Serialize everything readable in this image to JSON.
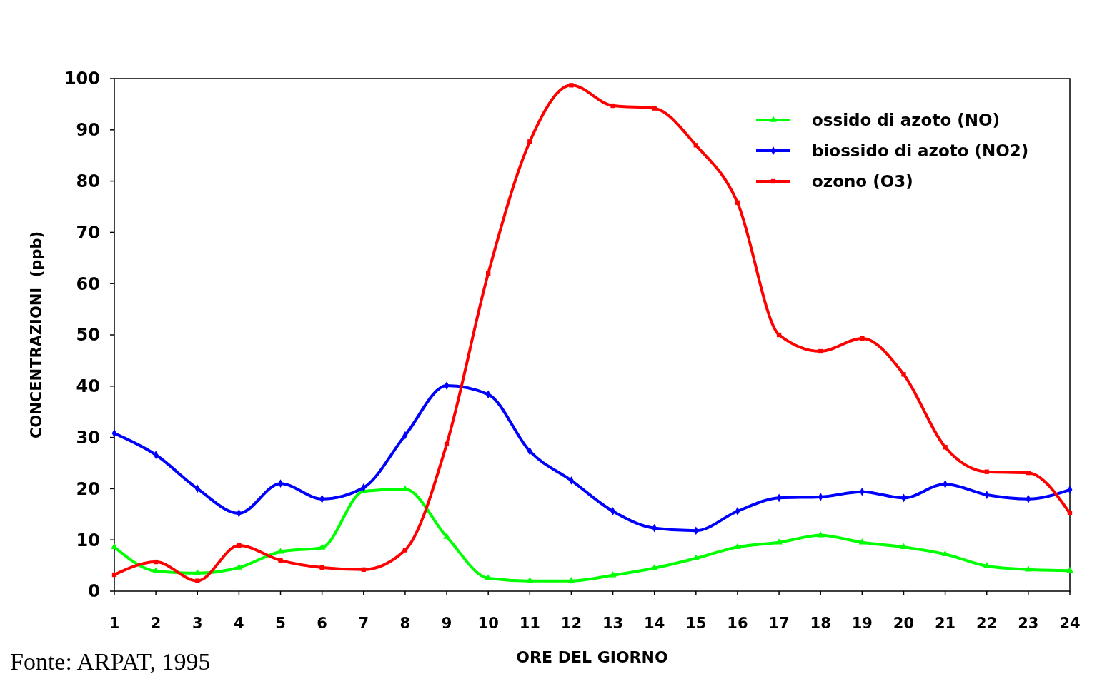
{
  "chart_data": {
    "type": "line",
    "xlabel": "ORE DEL GIORNO",
    "ylabel": "CONCENTRAZIONI  (ppb)",
    "annotations": [
      "Fonte: ARPAT, 1995"
    ],
    "x": [
      1,
      2,
      3,
      4,
      5,
      6,
      7,
      8,
      9,
      10,
      11,
      12,
      13,
      14,
      15,
      16,
      17,
      18,
      19,
      20,
      21,
      22,
      23,
      24
    ],
    "xlim": [
      1,
      24
    ],
    "xticks": [
      1,
      2,
      3,
      4,
      5,
      6,
      7,
      8,
      9,
      10,
      11,
      12,
      13,
      14,
      15,
      16,
      17,
      18,
      19,
      20,
      21,
      22,
      23,
      24
    ],
    "ylim": [
      0,
      100
    ],
    "yticks": [
      0,
      10,
      20,
      30,
      40,
      50,
      60,
      70,
      80,
      90,
      100
    ],
    "grid": false,
    "legend": "top right",
    "line_style": "solid",
    "series": [
      {
        "name": "ossido di azoto (NO)",
        "color": "#00ff00",
        "marker": "triangle",
        "values": [
          8.6,
          3.9,
          3.5,
          4.6,
          7.7,
          8.5,
          19.5,
          19.9,
          10.6,
          2.5,
          2,
          2,
          3.1,
          4.5,
          6.4,
          8.6,
          9.5,
          10.9,
          9.5,
          8.6,
          7.2,
          4.9,
          4.2,
          4
        ]
      },
      {
        "name": "biossido di azoto (NO2)",
        "color": "#0000ff",
        "marker": "diamond",
        "values": [
          30.8,
          26.6,
          20,
          15.2,
          21,
          18,
          20.2,
          30.4,
          40.1,
          38.4,
          27.3,
          21.6,
          15.6,
          12.3,
          11.8,
          15.6,
          18.2,
          18.4,
          19.4,
          18.2,
          20.9,
          18.8,
          18,
          19.8
        ]
      },
      {
        "name": "ozono (O3)",
        "color": "#ff0000",
        "marker": "square",
        "values": [
          3.2,
          5.7,
          2,
          8.9,
          6,
          4.6,
          4.2,
          8,
          28.7,
          62,
          87.7,
          98.7,
          94.7,
          94.2,
          87,
          75.8,
          50,
          46.8,
          49.3,
          42.3,
          28.1,
          23.3,
          23.1,
          15.2
        ]
      }
    ]
  }
}
